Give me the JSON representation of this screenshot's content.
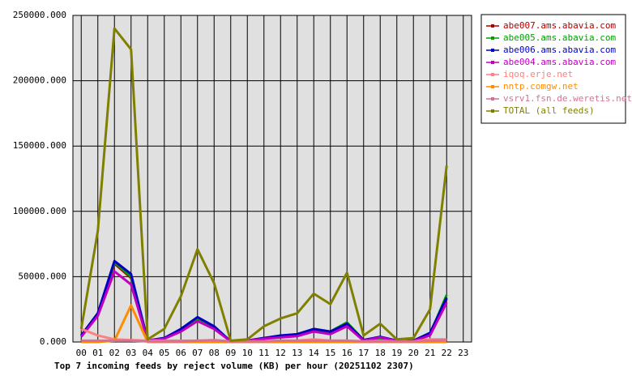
{
  "chart_data": {
    "type": "line",
    "x_label": "Top 7 incoming feeds by reject volume (KB) per hour (20251102 2307)",
    "categories": [
      "00",
      "01",
      "02",
      "03",
      "04",
      "05",
      "06",
      "07",
      "08",
      "09",
      "10",
      "11",
      "12",
      "13",
      "14",
      "15",
      "16",
      "17",
      "18",
      "19",
      "20",
      "21",
      "22",
      "23"
    ],
    "ylim": [
      0,
      250000
    ],
    "yticks": [
      {
        "value": 0,
        "label": "0.000"
      },
      {
        "value": 50000,
        "label": "50000.000"
      },
      {
        "value": 100000,
        "label": "100000.000"
      },
      {
        "value": 150000,
        "label": "150000.000"
      },
      {
        "value": 200000,
        "label": "200000.000"
      },
      {
        "value": 250000,
        "label": "250000.000"
      }
    ],
    "grid": true,
    "legend": "right",
    "background": "#e0e0e0",
    "series": [
      {
        "name": "abe007.ams.abavia.com",
        "color": "#b00000",
        "values": [
          5000,
          21000,
          60000,
          49000,
          1000,
          3000,
          9000,
          17000,
          11000,
          500,
          1000,
          3000,
          4000,
          5000,
          9000,
          7000,
          13000,
          1500,
          3500,
          1000,
          1000,
          6000,
          33000,
          null
        ]
      },
      {
        "name": "abe005.ams.abavia.com",
        "color": "#00a000",
        "values": [
          5000,
          22000,
          61000,
          50000,
          1000,
          3000,
          8000,
          18000,
          11000,
          500,
          1000,
          3000,
          4000,
          5000,
          9000,
          8000,
          15000,
          1500,
          3000,
          1000,
          1000,
          6000,
          36000,
          null
        ]
      },
      {
        "name": "abe006.ams.abavia.com",
        "color": "#0000c0",
        "values": [
          5000,
          22000,
          62000,
          52000,
          1000,
          3000,
          10000,
          19000,
          12000,
          500,
          1000,
          3000,
          5000,
          6000,
          10000,
          8000,
          14000,
          1500,
          4000,
          1000,
          1000,
          7000,
          34000,
          null
        ]
      },
      {
        "name": "abe004.ams.abavia.com",
        "color": "#c000c0",
        "values": [
          4000,
          20000,
          54000,
          44000,
          1000,
          2500,
          8000,
          16000,
          10000,
          500,
          1000,
          2500,
          3500,
          4500,
          8000,
          6000,
          12000,
          1000,
          3500,
          800,
          800,
          5000,
          30000,
          null
        ]
      },
      {
        "name": "iqoq.erje.net",
        "color": "#ff8080",
        "values": [
          10000,
          5000,
          2000,
          1500,
          1000,
          1000,
          1000,
          1000,
          1000,
          500,
          500,
          500,
          1000,
          1000,
          2000,
          1000,
          1000,
          500,
          1000,
          500,
          500,
          2000,
          2000,
          null
        ]
      },
      {
        "name": "nntp.comgw.net",
        "color": "#ff8c00",
        "values": [
          0,
          0,
          1000,
          28000,
          0,
          0,
          0,
          0,
          0,
          0,
          0,
          0,
          0,
          0,
          0,
          0,
          0,
          0,
          0,
          0,
          0,
          0,
          0,
          null
        ]
      },
      {
        "name": "vsrv1.fsn.de.weretis.net",
        "color": "#d87093",
        "values": [
          1000,
          1000,
          1000,
          1000,
          500,
          500,
          500,
          1000,
          1500,
          500,
          500,
          500,
          1000,
          1000,
          1000,
          1000,
          1000,
          500,
          500,
          500,
          500,
          1000,
          1500,
          null
        ]
      },
      {
        "name": "TOTAL (all feeds)",
        "color": "#808000",
        "values": [
          10000,
          85000,
          240000,
          224000,
          2000,
          10000,
          35000,
          71000,
          45000,
          1000,
          2000,
          12000,
          18000,
          22000,
          37000,
          29000,
          53000,
          5000,
          14000,
          2000,
          3000,
          25000,
          135000,
          null
        ]
      }
    ]
  }
}
